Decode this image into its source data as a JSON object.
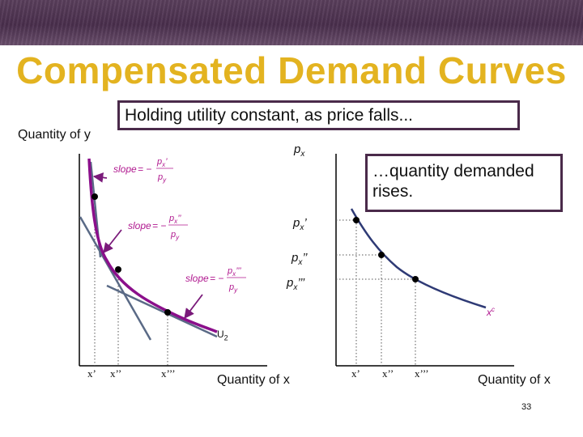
{
  "slide": {
    "title": "Compensated Demand Curves",
    "callout_top": "Holding utility constant, as price falls...",
    "callout_right": "…quantity demanded rises.",
    "page_number": "33"
  },
  "left_graph": {
    "y_axis_label": "Quantity of y",
    "x_axis_label": "Quantity of x",
    "curve_label": "U",
    "curve_subscript": "2",
    "x_ticks": [
      "x’",
      "x’’",
      "x’’’"
    ],
    "slope_word": "slope",
    "slope_labels": [
      {
        "num": "p",
        "num_sub": "x",
        "num_primes": "’",
        "den": "p",
        "den_sub": "y"
      },
      {
        "num": "p",
        "num_sub": "x",
        "num_primes": "’’",
        "den": "p",
        "den_sub": "y"
      },
      {
        "num": "p",
        "num_sub": "x",
        "num_primes": "’’’",
        "den": "p",
        "den_sub": "y"
      }
    ]
  },
  "right_graph": {
    "y_axis_label": "p",
    "y_axis_sub": "x",
    "x_axis_label": "Quantity of x",
    "price_labels": [
      {
        "base": "p",
        "sub": "x",
        "primes": "’"
      },
      {
        "base": "p",
        "sub": "x",
        "primes": "’’"
      },
      {
        "base": "p",
        "sub": "x",
        "primes": "’’’"
      }
    ],
    "x_ticks": [
      "x’",
      "x’’",
      "x’’’"
    ],
    "curve_label": "x",
    "curve_superscript": "c"
  },
  "colors": {
    "title": "#e3b320",
    "banner": "#4a2f4d",
    "indifference_curve": "#8b0f8b",
    "demand_curve": "#2e3a75",
    "tangent_lines": "#5a6a86",
    "slope_labels": "#b0188f",
    "callout_border": "#4a2a4a"
  }
}
